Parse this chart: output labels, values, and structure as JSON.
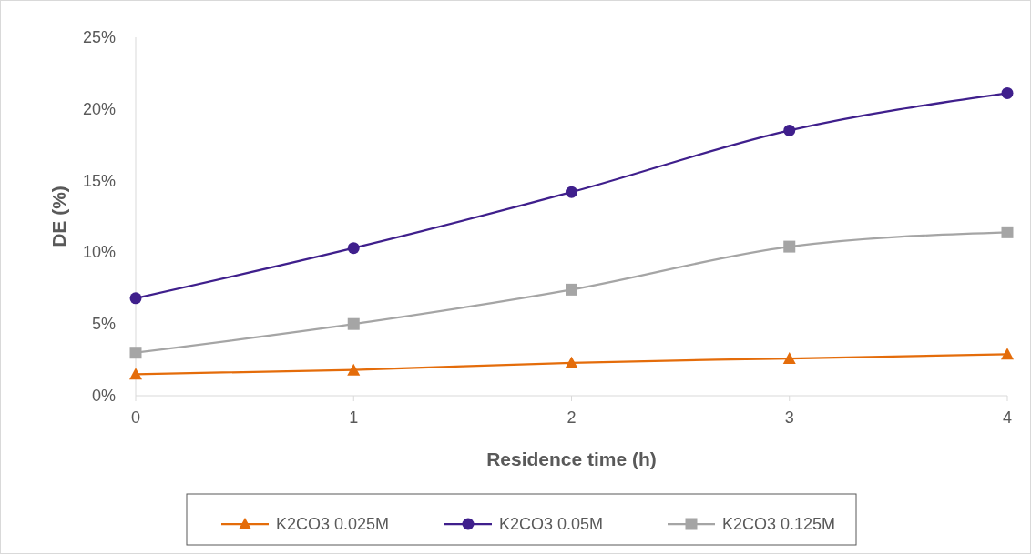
{
  "chart_data": {
    "type": "line",
    "xlabel": "Residence time (h)",
    "ylabel": "DE (%)",
    "x": [
      0,
      1,
      2,
      3,
      4
    ],
    "xlim": [
      0,
      4
    ],
    "xticks": [
      0,
      1,
      2,
      3,
      4
    ],
    "ylim": [
      0,
      25
    ],
    "yticks": [
      {
        "value": 0,
        "label": "0%"
      },
      {
        "value": 5,
        "label": "5%"
      },
      {
        "value": 10,
        "label": "10%"
      },
      {
        "value": 15,
        "label": "15%"
      },
      {
        "value": 20,
        "label": "20%"
      },
      {
        "value": 25,
        "label": "25%"
      }
    ],
    "legend": "bottom",
    "series": [
      {
        "name": "K2CO3 0.025M",
        "color": "#e46c0a",
        "marker": "triangle",
        "values": [
          1.5,
          1.8,
          2.3,
          2.6,
          2.9
        ]
      },
      {
        "name": "K2CO3 0.05M",
        "color": "#3f1f8c",
        "marker": "circle",
        "values": [
          6.8,
          10.3,
          14.2,
          18.5,
          21.1
        ]
      },
      {
        "name": "K2CO3 0.125M",
        "color": "#a5a5a5",
        "marker": "square",
        "values": [
          3.0,
          5.0,
          7.4,
          10.4,
          11.4
        ]
      }
    ]
  }
}
